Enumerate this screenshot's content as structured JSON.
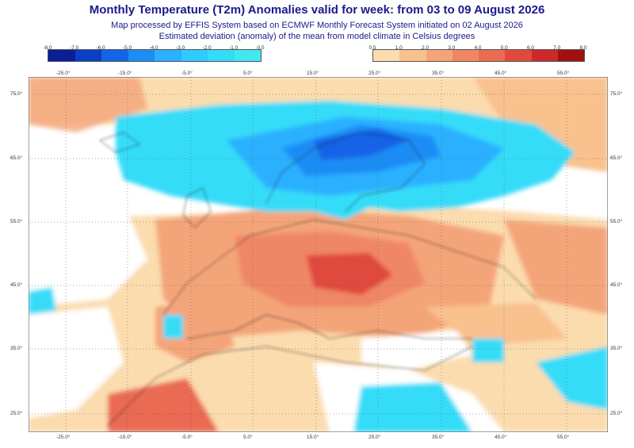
{
  "header": {
    "title": "Monthly Temperature (T2m) Anomalies valid for week: from 03 to 09 August 2026",
    "line1": "Map processed by EFFIS System based on ECMWF Monthly Forecast System initiated on 02 August 2026",
    "line2": "Estimated deviation (anomaly) of the mean from model climate in Celsius degrees"
  },
  "legend_cold": {
    "ticks": [
      "-8.0",
      "-7.0",
      "-6.0",
      "-5.0",
      "-4.0",
      "-3.0",
      "-2.0",
      "-1.0",
      "-0.5"
    ],
    "colors": [
      "#0a1e96",
      "#0b3fc4",
      "#1464e8",
      "#1e8cf5",
      "#2ab0ff",
      "#2ecbff",
      "#35dcf8",
      "#40e8f0"
    ]
  },
  "legend_warm": {
    "ticks": [
      "0.5",
      "1.0",
      "2.0",
      "3.0",
      "4.0",
      "5.0",
      "6.0",
      "7.0",
      "8.0"
    ],
    "colors": [
      "#fbdcae",
      "#f8c18e",
      "#f4a479",
      "#ef8766",
      "#ea6a52",
      "#e04a3d",
      "#cc2a2a",
      "#a01010"
    ]
  },
  "axes": {
    "lon_labels": [
      "-25.0°",
      "-15.0°",
      "-5.0°",
      "5.0°",
      "15.0°",
      "25.0°",
      "35.0°",
      "45.0°",
      "55.0°"
    ],
    "lat_labels": [
      "75.0°",
      "65.0°",
      "55.0°",
      "45.0°",
      "35.0°",
      "25.0°"
    ]
  }
}
